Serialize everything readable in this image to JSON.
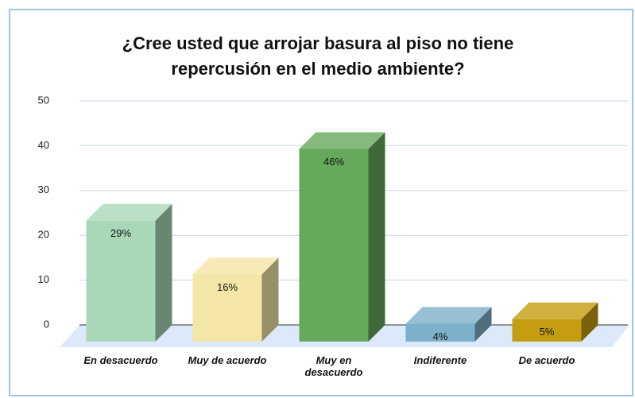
{
  "chart_data": {
    "type": "bar3d",
    "title": [
      "¿Cree usted que arrojar basura al piso no tiene",
      "repercusión en el medio ambiente?"
    ],
    "categories": [
      "En desacuerdo",
      "Muy de acuerdo",
      "Muy en desacuerdo",
      "Indiferente",
      "De acuerdo"
    ],
    "values": [
      27,
      15,
      43,
      4,
      5
    ],
    "value_labels": [
      "29%",
      "16%",
      "46%",
      "4%",
      "5%"
    ],
    "colors": [
      "#a9d8b8",
      "#f4e6a6",
      "#66a95c",
      "#7db0ca",
      "#c49d10"
    ],
    "ylim": [
      0,
      50
    ],
    "yticks": [
      0,
      10,
      20,
      30,
      40,
      50
    ],
    "grid": true
  }
}
